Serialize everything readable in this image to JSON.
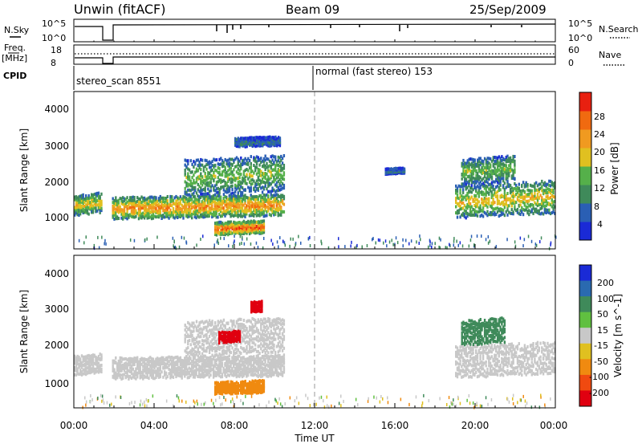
{
  "header": {
    "station": "Unwin (fitACF)",
    "beam": "Beam 09",
    "date": "25/Sep/2009"
  },
  "strips": {
    "nsky_label": "N.Sky",
    "nsky_ticks": [
      "10^5",
      "10^0"
    ],
    "nsearch_label": "N.Search",
    "nsearch_ticks": [
      "10^5",
      "10^0"
    ],
    "freq_label": "Freq.",
    "freq_unit": "[MHz]",
    "freq_ticks": [
      "18",
      "8"
    ],
    "nave_label": "Nave",
    "nave_ticks": [
      "60",
      "0"
    ],
    "cpid_label": "CPID",
    "cpid_segments": [
      "stereo_scan 8551",
      "normal (fast stereo) 153"
    ]
  },
  "colors": {
    "power_scale": [
      "#1a2ad6",
      "#2a5fb4",
      "#3f8a5a",
      "#55b04a",
      "#e0c020",
      "#f09a20",
      "#f06a10",
      "#e82010"
    ],
    "velocity_scale": [
      "#1a2ad6",
      "#2a6ab0",
      "#3f8a5a",
      "#60c040",
      "#c8c8c8",
      "#e0c020",
      "#f08a10",
      "#f04a10",
      "#e00010"
    ],
    "grey": "#c8c8c8",
    "divider": "#999999"
  },
  "chart_data": [
    {
      "type": "heatmap",
      "panel": "power",
      "ylabel": "Slant Range [km]",
      "yticks": [
        "4000",
        "3000",
        "2000",
        "1000"
      ],
      "ylim": [
        200,
        4500
      ],
      "colorbar_label": "Power [dB]",
      "colorbar_ticks": [
        "28",
        "24",
        "20",
        "16",
        "12",
        "8",
        "4"
      ],
      "colorbar_range": [
        0,
        32
      ],
      "echo_bands": [
        {
          "t0": 0.0,
          "t1": 1.4,
          "r0": 1150,
          "r1": 1700,
          "level": 18
        },
        {
          "t0": 1.9,
          "t1": 10.5,
          "r0": 1050,
          "r1": 1650,
          "level": 22
        },
        {
          "t0": 5.5,
          "t1": 10.5,
          "r0": 1700,
          "r1": 2700,
          "level": 14
        },
        {
          "t0": 7.0,
          "t1": 9.5,
          "r0": 600,
          "r1": 950,
          "level": 26
        },
        {
          "t0": 8.0,
          "t1": 10.3,
          "r0": 3000,
          "r1": 3250,
          "level": 8
        },
        {
          "t0": 15.5,
          "t1": 16.5,
          "r0": 2250,
          "r1": 2400,
          "level": 8
        },
        {
          "t0": 19.0,
          "t1": 24.0,
          "r0": 1100,
          "r1": 2000,
          "level": 18
        },
        {
          "t0": 19.3,
          "t1": 22.0,
          "r0": 2000,
          "r1": 2700,
          "level": 14
        }
      ]
    },
    {
      "type": "heatmap",
      "panel": "velocity",
      "ylabel": "Slant Range [km]",
      "yticks": [
        "4000",
        "3000",
        "2000",
        "1000"
      ],
      "ylim": [
        200,
        4500
      ],
      "colorbar_label": "Velocity [m s^-1]",
      "colorbar_ticks": [
        "200",
        "100",
        "50",
        "15",
        "-15",
        "-50",
        "-100",
        "-200"
      ],
      "echo_bands": [
        {
          "t0": 0.0,
          "t1": 1.4,
          "r0": 1150,
          "r1": 1700,
          "v": 0
        },
        {
          "t0": 1.9,
          "t1": 10.5,
          "r0": 1050,
          "r1": 1650,
          "v": 0
        },
        {
          "t0": 5.5,
          "t1": 10.5,
          "r0": 1700,
          "r1": 2700,
          "v": 0
        },
        {
          "t0": 7.2,
          "t1": 8.3,
          "r0": 2050,
          "r1": 2350,
          "v": -200
        },
        {
          "t0": 8.8,
          "t1": 9.4,
          "r0": 2900,
          "r1": 3200,
          "v": -200
        },
        {
          "t0": 7.0,
          "t1": 9.5,
          "r0": 600,
          "r1": 950,
          "v": -50
        },
        {
          "t0": 19.0,
          "t1": 24.0,
          "r0": 1100,
          "r1": 2000,
          "v": 0
        },
        {
          "t0": 19.3,
          "t1": 21.5,
          "r0": 2000,
          "r1": 2700,
          "v": 50
        }
      ]
    }
  ],
  "xaxis": {
    "label": "Time UT",
    "ticks": [
      "00:00",
      "04:00",
      "08:00",
      "12:00",
      "16:00",
      "20:00",
      "00:00"
    ],
    "range": [
      0,
      24
    ]
  }
}
